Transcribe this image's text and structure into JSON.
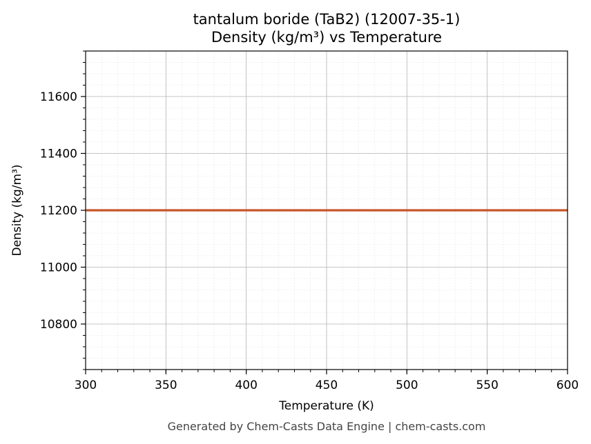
{
  "chart_data": {
    "type": "line",
    "title_line1": "tantalum boride (TaB2) (12007-35-1)",
    "title_line2": "Density (kg/m³) vs Temperature",
    "xlabel": "Temperature (K)",
    "ylabel": "Density (kg/m³)",
    "xlim": [
      300,
      600
    ],
    "ylim": [
      10640,
      11760
    ],
    "x_ticks": [
      300,
      350,
      400,
      450,
      500,
      550,
      600
    ],
    "y_ticks": [
      10800,
      11000,
      11200,
      11400,
      11600
    ],
    "grid": true,
    "series": [
      {
        "color": "#c8552a",
        "x": [
          300,
          350,
          400,
          450,
          500,
          550,
          600
        ],
        "y": [
          11200,
          11200,
          11200,
          11200,
          11200,
          11200,
          11200
        ]
      }
    ]
  },
  "footer": "Generated by Chem-Casts Data Engine | chem-casts.com"
}
